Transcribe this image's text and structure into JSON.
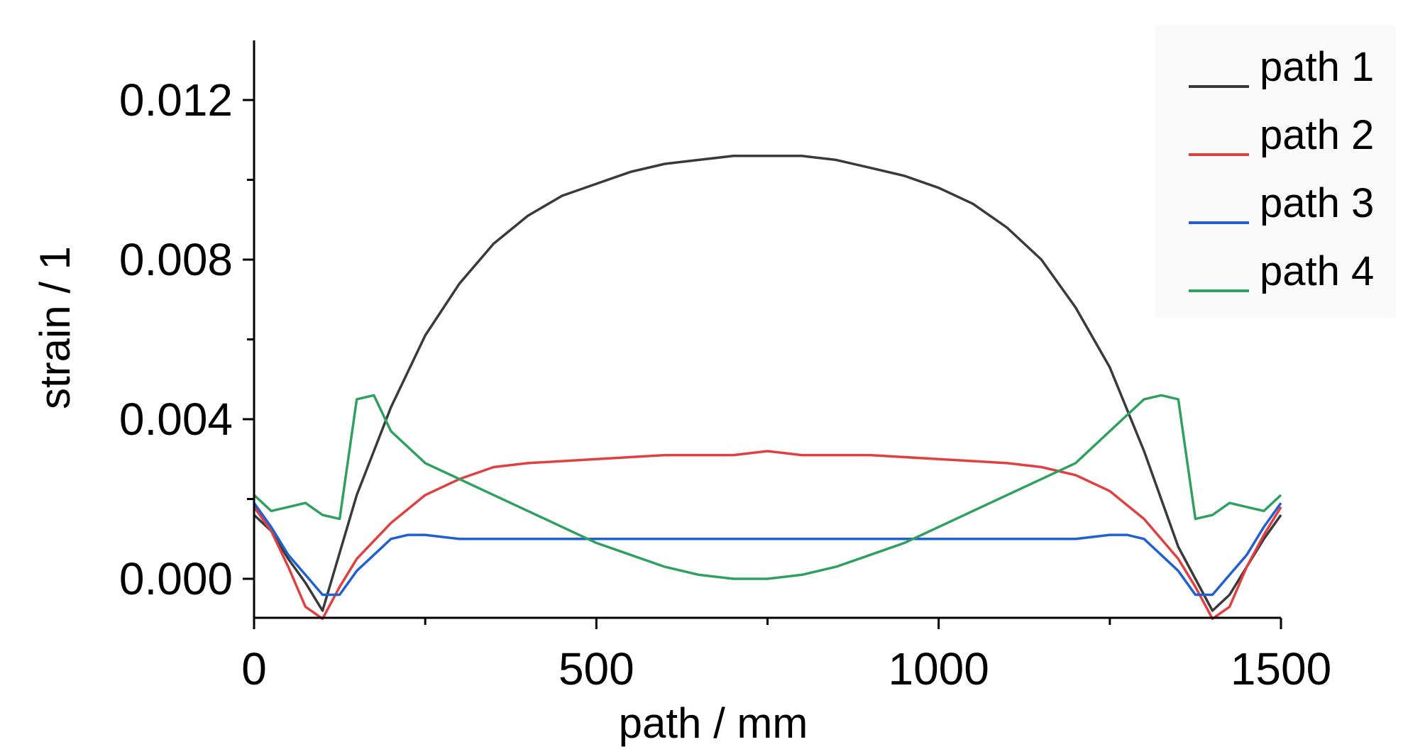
{
  "chart_data": {
    "type": "line",
    "xlabel": "path / mm",
    "ylabel": "strain / 1",
    "xlim": [
      0,
      1500
    ],
    "ylim": [
      -0.001,
      0.0135
    ],
    "xticks": [
      0,
      500,
      1000,
      1500
    ],
    "xtick_labels": [
      "0",
      "500",
      "1000",
      "1500"
    ],
    "yticks": [
      0.0,
      0.004,
      0.008,
      0.012
    ],
    "ytick_labels": [
      "0.000",
      "0.004",
      "0.008",
      "0.012"
    ],
    "grid": false,
    "legend_position": "top-right",
    "series": [
      {
        "name": "path 1",
        "color": "#3a3a3a",
        "x": [
          0,
          25,
          50,
          75,
          100,
          150,
          200,
          250,
          300,
          350,
          400,
          450,
          500,
          550,
          600,
          650,
          700,
          750,
          800,
          850,
          900,
          950,
          1000,
          1050,
          1100,
          1150,
          1200,
          1250,
          1300,
          1350,
          1400,
          1425,
          1450,
          1475,
          1500
        ],
        "y": [
          0.0016,
          0.0012,
          0.0005,
          -0.0001,
          -0.0008,
          0.0021,
          0.0043,
          0.0061,
          0.0074,
          0.0084,
          0.0091,
          0.0096,
          0.0099,
          0.0102,
          0.0104,
          0.0105,
          0.0106,
          0.0106,
          0.0106,
          0.0105,
          0.0103,
          0.0101,
          0.0098,
          0.0094,
          0.0088,
          0.008,
          0.0068,
          0.0053,
          0.0032,
          0.0008,
          -0.0008,
          -0.0004,
          0.0003,
          0.001,
          0.0016
        ]
      },
      {
        "name": "path 2",
        "color": "#e04040",
        "x": [
          0,
          25,
          50,
          75,
          100,
          125,
          150,
          200,
          250,
          300,
          350,
          400,
          500,
          600,
          700,
          750,
          800,
          900,
          1000,
          1100,
          1150,
          1200,
          1250,
          1300,
          1350,
          1375,
          1400,
          1425,
          1450,
          1475,
          1500
        ],
        "y": [
          0.0018,
          0.0012,
          0.0003,
          -0.0007,
          -0.001,
          -0.0002,
          0.0005,
          0.0014,
          0.0021,
          0.0025,
          0.0028,
          0.0029,
          0.003,
          0.0031,
          0.0031,
          0.0032,
          0.0031,
          0.0031,
          0.003,
          0.0029,
          0.0028,
          0.0026,
          0.0022,
          0.0015,
          0.0005,
          -0.0002,
          -0.001,
          -0.0007,
          0.0003,
          0.0011,
          0.0018
        ]
      },
      {
        "name": "path 3",
        "color": "#2060d0",
        "x": [
          0,
          25,
          50,
          75,
          100,
          125,
          150,
          175,
          200,
          225,
          250,
          300,
          400,
          500,
          600,
          700,
          750,
          800,
          900,
          1000,
          1100,
          1200,
          1250,
          1275,
          1300,
          1325,
          1350,
          1375,
          1400,
          1425,
          1450,
          1475,
          1500
        ],
        "y": [
          0.0019,
          0.0013,
          0.0006,
          0.0001,
          -0.0004,
          -0.0004,
          0.0002,
          0.0006,
          0.001,
          0.0011,
          0.0011,
          0.001,
          0.001,
          0.001,
          0.001,
          0.001,
          0.001,
          0.001,
          0.001,
          0.001,
          0.001,
          0.001,
          0.0011,
          0.0011,
          0.001,
          0.0006,
          0.0002,
          -0.0004,
          -0.0004,
          0.0001,
          0.0006,
          0.0013,
          0.0019
        ]
      },
      {
        "name": "path 4",
        "color": "#30a060",
        "x": [
          0,
          25,
          50,
          75,
          100,
          125,
          150,
          175,
          200,
          250,
          300,
          350,
          400,
          450,
          500,
          550,
          600,
          650,
          700,
          750,
          800,
          850,
          900,
          950,
          1000,
          1050,
          1100,
          1150,
          1200,
          1250,
          1300,
          1325,
          1350,
          1375,
          1400,
          1425,
          1450,
          1475,
          1500
        ],
        "y": [
          0.0021,
          0.0017,
          0.0018,
          0.0019,
          0.0016,
          0.0015,
          0.0045,
          0.0046,
          0.0037,
          0.0029,
          0.0025,
          0.0021,
          0.0017,
          0.0013,
          0.0009,
          0.0006,
          0.0003,
          0.0001,
          0.0,
          0.0,
          0.0001,
          0.0003,
          0.0006,
          0.0009,
          0.0013,
          0.0017,
          0.0021,
          0.0025,
          0.0029,
          0.0037,
          0.0045,
          0.0046,
          0.0045,
          0.0015,
          0.0016,
          0.0019,
          0.0018,
          0.0017,
          0.0021
        ]
      }
    ]
  }
}
